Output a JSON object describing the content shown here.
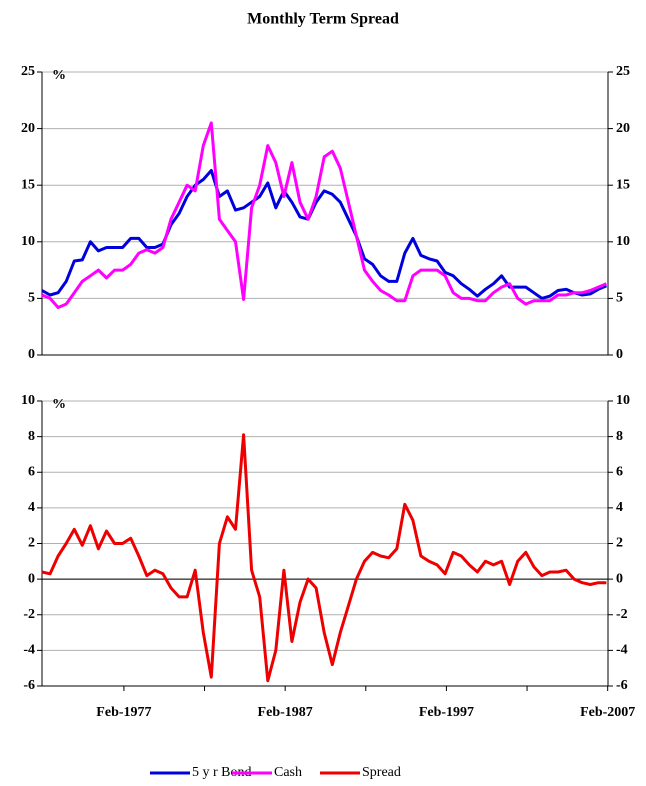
{
  "chart_data": [
    {
      "type": "line",
      "title": "Monthly Term Spread",
      "y_unit": "%",
      "x": [
        1972.0,
        1972.5,
        1973.0,
        1973.5,
        1974.0,
        1974.5,
        1975.0,
        1975.5,
        1976.0,
        1976.5,
        1977.0,
        1977.5,
        1978.0,
        1978.5,
        1979.0,
        1979.5,
        1980.0,
        1980.5,
        1981.0,
        1981.5,
        1982.0,
        1982.5,
        1983.0,
        1983.5,
        1984.0,
        1984.5,
        1985.0,
        1985.5,
        1986.0,
        1986.5,
        1987.0,
        1987.5,
        1988.0,
        1988.5,
        1989.0,
        1989.5,
        1990.0,
        1990.5,
        1991.0,
        1991.5,
        1992.0,
        1992.5,
        1993.0,
        1993.5,
        1994.0,
        1994.5,
        1995.0,
        1995.5,
        1996.0,
        1996.5,
        1997.0,
        1997.5,
        1998.0,
        1998.5,
        1999.0,
        1999.5,
        2000.0,
        2000.5,
        2001.0,
        2001.5,
        2002.0,
        2002.5,
        2003.0,
        2003.5,
        2004.0,
        2004.5,
        2005.0,
        2005.5,
        2006.0,
        2006.5,
        2007.0
      ],
      "series": [
        {
          "name": "5 y r Bond",
          "color": "#0000dd",
          "values": [
            5.7,
            5.3,
            5.5,
            6.5,
            8.3,
            8.4,
            10.0,
            9.2,
            9.5,
            9.5,
            9.5,
            10.3,
            10.3,
            9.5,
            9.5,
            9.8,
            11.5,
            12.5,
            14.0,
            15.0,
            15.5,
            16.3,
            14.0,
            14.5,
            12.8,
            13.0,
            13.5,
            14.0,
            15.2,
            13.0,
            14.5,
            13.5,
            12.2,
            12.0,
            13.5,
            14.5,
            14.2,
            13.5,
            12.0,
            10.5,
            8.5,
            8.0,
            7.0,
            6.5,
            6.5,
            9.0,
            10.3,
            8.8,
            8.5,
            8.3,
            7.3,
            7.0,
            6.3,
            5.8,
            5.2,
            5.8,
            6.3,
            7.0,
            6.0,
            6.0,
            6.0,
            5.5,
            5.0,
            5.2,
            5.7,
            5.8,
            5.5,
            5.3,
            5.4,
            5.8,
            6.1
          ]
        },
        {
          "name": "Cash",
          "color": "#ff00ff",
          "values": [
            5.3,
            5.0,
            4.2,
            4.5,
            5.5,
            6.5,
            7.0,
            7.5,
            6.8,
            7.5,
            7.5,
            8.0,
            9.0,
            9.3,
            9.0,
            9.5,
            12.0,
            13.5,
            15.0,
            14.5,
            18.5,
            20.5,
            12.0,
            11.0,
            10.0,
            4.9,
            13.0,
            15.0,
            18.5,
            17.0,
            14.0,
            17.0,
            13.5,
            12.0,
            14.0,
            17.5,
            18.0,
            16.5,
            13.5,
            10.5,
            7.5,
            6.5,
            5.7,
            5.3,
            4.8,
            4.8,
            7.0,
            7.5,
            7.5,
            7.5,
            7.0,
            5.5,
            5.0,
            5.0,
            4.8,
            4.8,
            5.5,
            6.0,
            6.3,
            5.0,
            4.5,
            4.8,
            4.8,
            4.8,
            5.3,
            5.3,
            5.5,
            5.5,
            5.7,
            6.0,
            6.3
          ]
        }
      ],
      "xlim": [
        1972.0,
        2007.1
      ],
      "ylim": [
        0,
        25
      ],
      "yticks": [
        0,
        5,
        10,
        15,
        20,
        25
      ],
      "grid": true
    },
    {
      "type": "line",
      "y_unit": "%",
      "x": [
        1972.0,
        1972.5,
        1973.0,
        1973.5,
        1974.0,
        1974.5,
        1975.0,
        1975.5,
        1976.0,
        1976.5,
        1977.0,
        1977.5,
        1978.0,
        1978.5,
        1979.0,
        1979.5,
        1980.0,
        1980.5,
        1981.0,
        1981.5,
        1982.0,
        1982.5,
        1983.0,
        1983.5,
        1984.0,
        1984.5,
        1985.0,
        1985.5,
        1986.0,
        1986.5,
        1987.0,
        1987.5,
        1988.0,
        1988.5,
        1989.0,
        1989.5,
        1990.0,
        1990.5,
        1991.0,
        1991.5,
        1992.0,
        1992.5,
        1993.0,
        1993.5,
        1994.0,
        1994.5,
        1995.0,
        1995.5,
        1996.0,
        1996.5,
        1997.0,
        1997.5,
        1998.0,
        1998.5,
        1999.0,
        1999.5,
        2000.0,
        2000.5,
        2001.0,
        2001.5,
        2002.0,
        2002.5,
        2003.0,
        2003.5,
        2004.0,
        2004.5,
        2005.0,
        2005.5,
        2006.0,
        2006.5,
        2007.0
      ],
      "series": [
        {
          "name": "Spread",
          "color": "#ee0000",
          "values": [
            0.4,
            0.3,
            1.3,
            2.0,
            2.8,
            1.9,
            3.0,
            1.7,
            2.7,
            2.0,
            2.0,
            2.3,
            1.3,
            0.2,
            0.5,
            0.3,
            -0.5,
            -1.0,
            -1.0,
            0.5,
            -3.0,
            -5.5,
            2.0,
            3.5,
            2.8,
            8.1,
            0.5,
            -1.0,
            -5.7,
            -4.0,
            0.5,
            -3.5,
            -1.3,
            0,
            -0.5,
            -3.0,
            -4.8,
            -3.0,
            -1.5,
            0,
            1.0,
            1.5,
            1.3,
            1.2,
            1.7,
            4.2,
            3.3,
            1.3,
            1.0,
            0.8,
            0.3,
            1.5,
            1.3,
            0.8,
            0.4,
            1.0,
            0.8,
            1.0,
            -0.3,
            1.0,
            1.5,
            0.7,
            0.2,
            0.4,
            0.4,
            0.5,
            0,
            -0.2,
            -0.3,
            -0.2,
            -0.2
          ]
        }
      ],
      "xlim": [
        1972.0,
        2007.1
      ],
      "ylim": [
        -6,
        10
      ],
      "yticks": [
        -6,
        -4,
        -2,
        0,
        2,
        4,
        6,
        8,
        10
      ],
      "xticks": [
        {
          "value": 1977.08,
          "label": "Feb-1977"
        },
        {
          "value": 1987.08,
          "label": "Feb-1987"
        },
        {
          "value": 1997.08,
          "label": "Feb-1997"
        },
        {
          "value": 2007.08,
          "label": "Feb-2007"
        }
      ],
      "xminorticks": [
        1982.08,
        1992.08,
        2002.08
      ],
      "grid": true,
      "zero_line": true
    }
  ]
}
